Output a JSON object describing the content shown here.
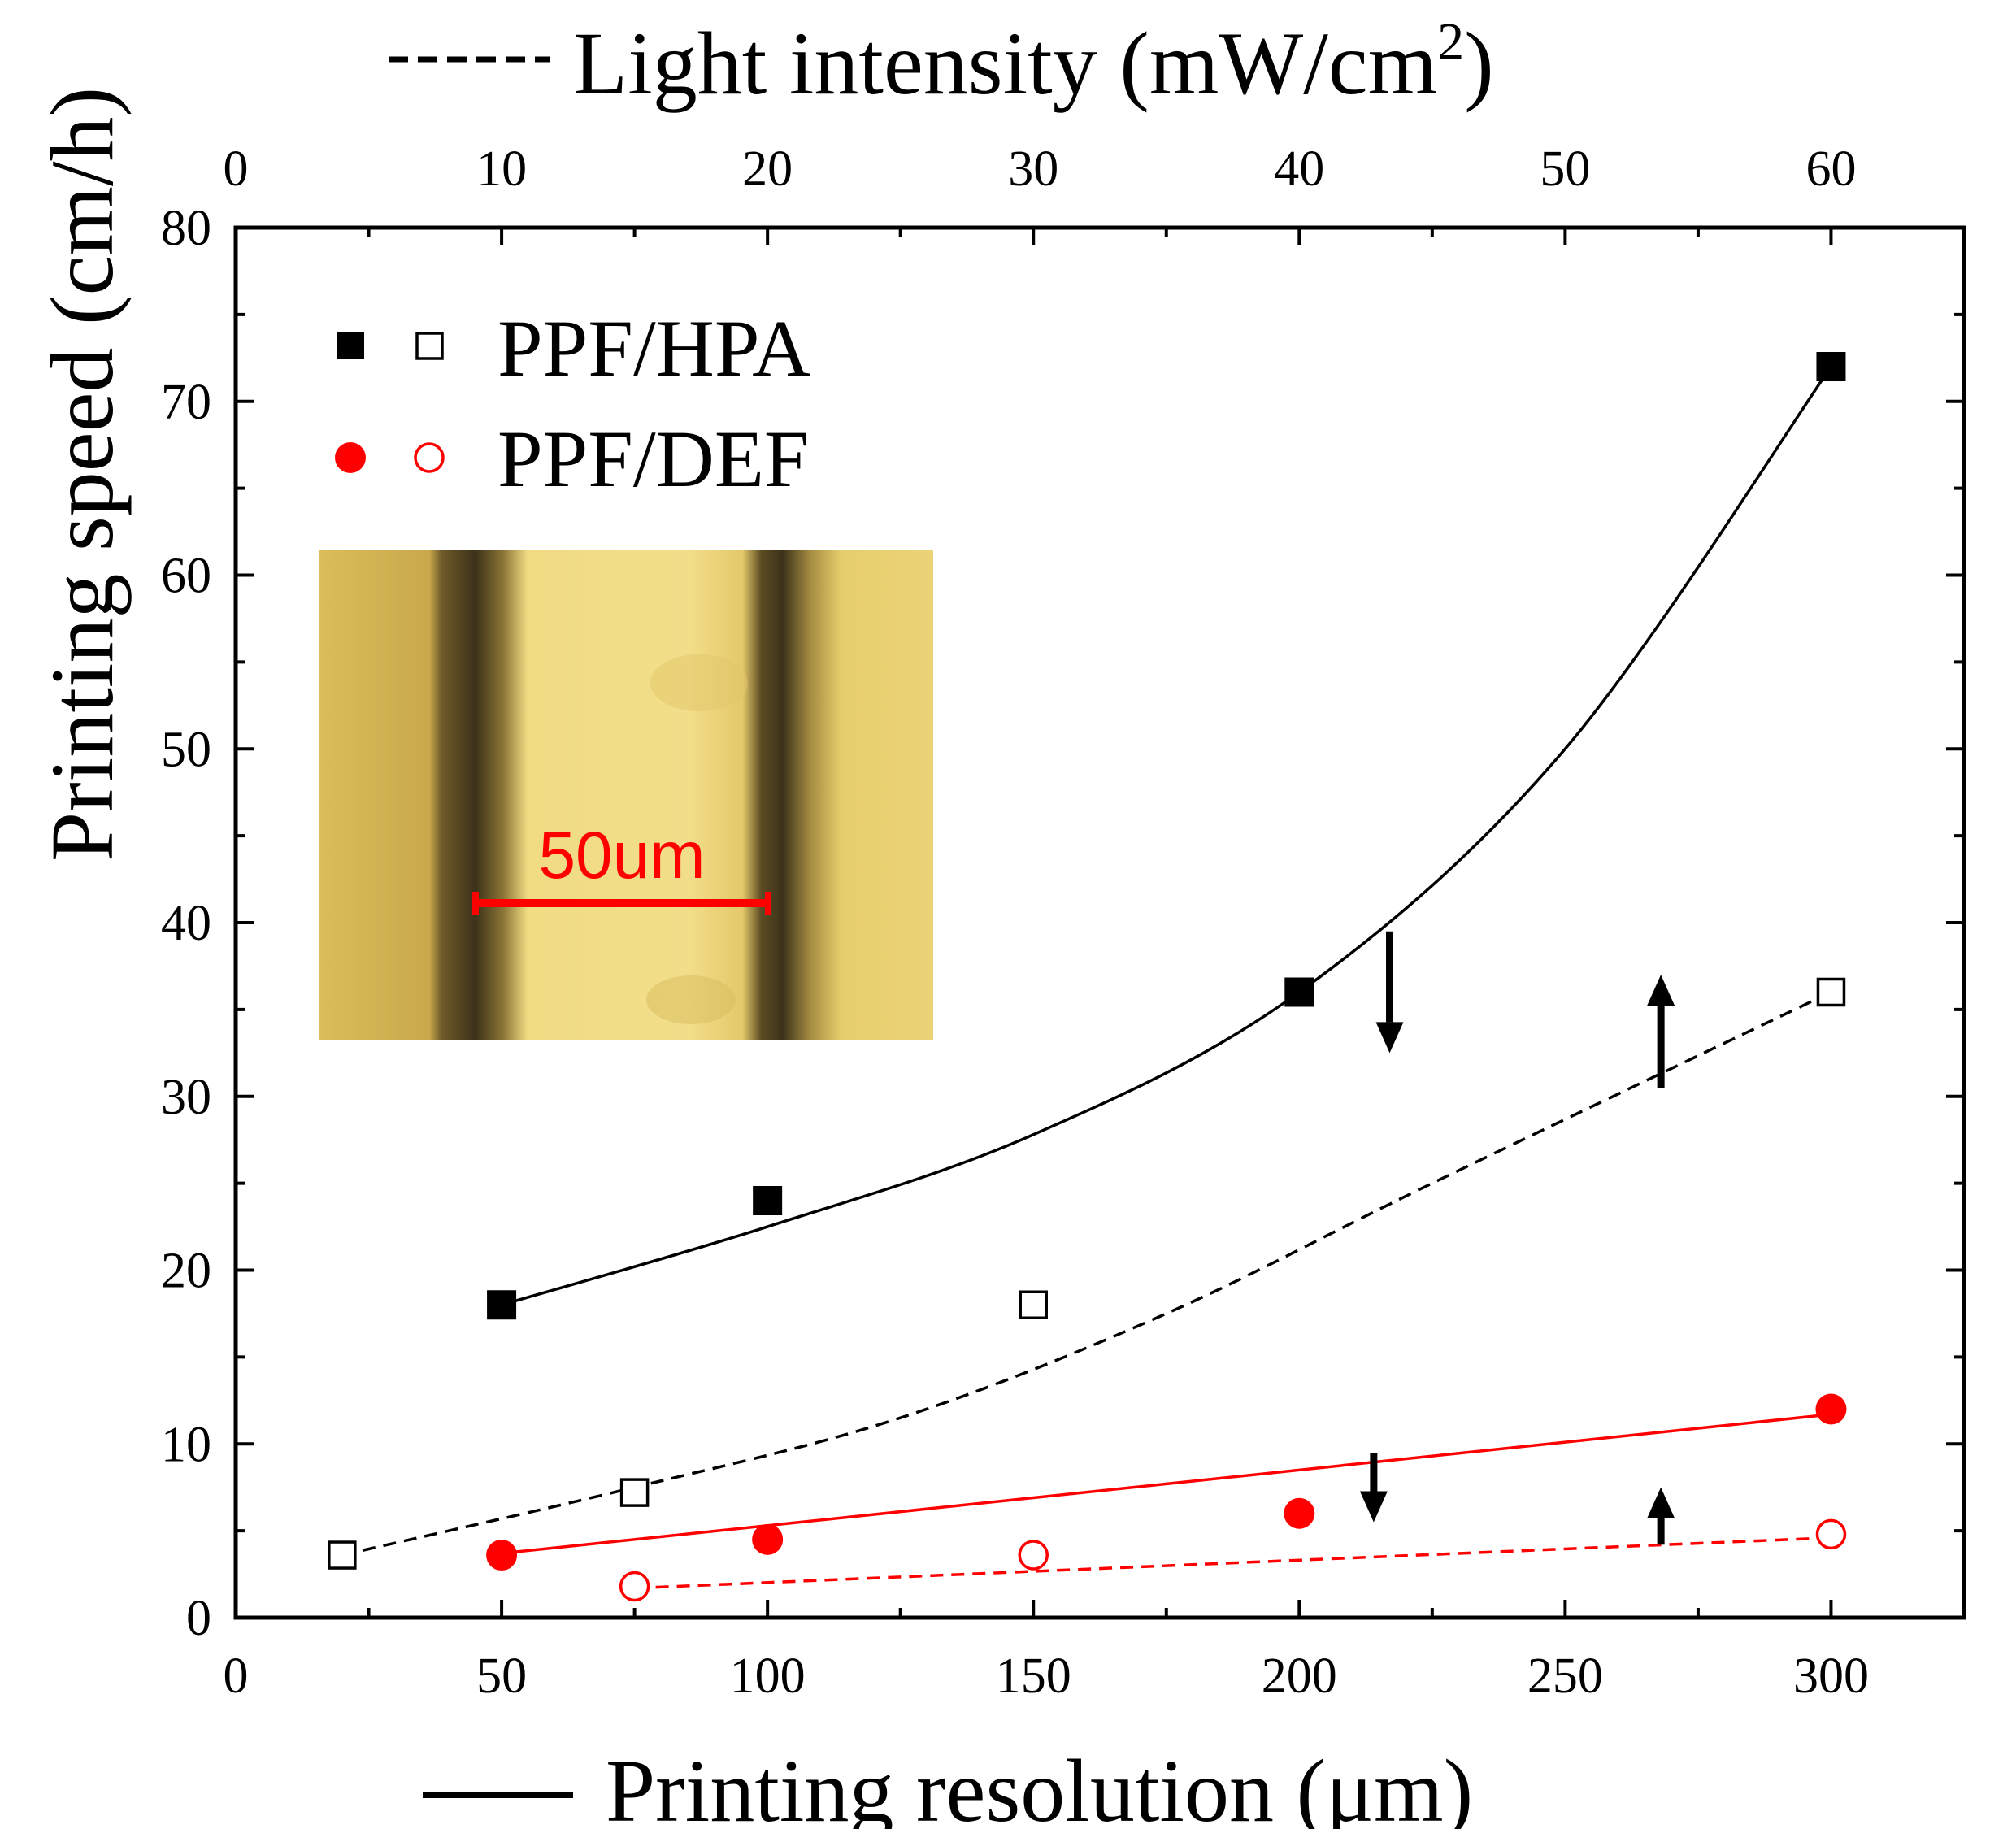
{
  "chart_data": {
    "type": "scatter",
    "x_bottom": {
      "label": "Printing resolution (μm)",
      "range": [
        0,
        325
      ],
      "ticks": [
        0,
        50,
        100,
        150,
        200,
        250,
        300
      ]
    },
    "x_top": {
      "label_main": "Light intensity (mW/cm",
      "label_sup": "2",
      "label_close": ")",
      "range": [
        0,
        65
      ],
      "ticks": [
        0,
        10,
        20,
        30,
        40,
        50,
        60
      ]
    },
    "y": {
      "label": "Printing speed (cm/h)",
      "range": [
        0,
        80
      ],
      "ticks": [
        0,
        10,
        20,
        30,
        40,
        50,
        60,
        70,
        80
      ]
    },
    "legend": {
      "position": "top-left",
      "entries": [
        {
          "label": "PPF/HPA",
          "color": "#000000"
        },
        {
          "label": "PPF/DEF",
          "color": "#ff0000"
        }
      ]
    },
    "series": [
      {
        "name": "PPF/HPA vs resolution",
        "axis": "bottom",
        "marker": "filled-square",
        "color": "#000000",
        "points": [
          [
            50,
            18
          ],
          [
            100,
            24
          ],
          [
            200,
            36
          ],
          [
            300,
            72
          ]
        ],
        "fit": {
          "style": "solid",
          "x_from": 50,
          "x_to": 300,
          "curve": [
            [
              50,
              18
            ],
            [
              100,
              22.5
            ],
            [
              150,
              27.8
            ],
            [
              200,
              36
            ],
            [
              250,
              50
            ],
            [
              300,
              72
            ]
          ]
        }
      },
      {
        "name": "PPF/HPA vs light intensity",
        "axis": "top",
        "marker": "open-square",
        "color": "#000000",
        "points": [
          [
            4,
            3.6
          ],
          [
            15,
            7.2
          ],
          [
            30,
            18
          ],
          [
            60,
            36
          ]
        ],
        "fit": {
          "style": "dashed",
          "x_from": 4,
          "x_to": 60,
          "curve": [
            [
              4,
              3.6
            ],
            [
              15,
              7.5
            ],
            [
              25,
              11.5
            ],
            [
              35,
              17.5
            ],
            [
              45,
              25
            ],
            [
              60,
              36
            ]
          ]
        }
      },
      {
        "name": "PPF/DEF vs resolution",
        "axis": "bottom",
        "marker": "filled-circle",
        "color": "#ff0000",
        "points": [
          [
            50,
            3.6
          ],
          [
            100,
            4.5
          ],
          [
            200,
            6.0
          ],
          [
            300,
            12.0
          ]
        ],
        "fit": {
          "style": "solid",
          "x_from": 50,
          "x_to": 300,
          "curve": [
            [
              50,
              3.7
            ],
            [
              300,
              11.7
            ]
          ]
        }
      },
      {
        "name": "PPF/DEF vs light intensity",
        "axis": "top",
        "marker": "open-circle",
        "color": "#ff0000",
        "points": [
          [
            15,
            1.8
          ],
          [
            30,
            3.6
          ],
          [
            60,
            4.8
          ]
        ],
        "fit": {
          "style": "dashed",
          "x_from": 15,
          "x_to": 60,
          "curve": [
            [
              15,
              1.7
            ],
            [
              60,
              4.6
            ]
          ]
        }
      }
    ],
    "annotations": [
      {
        "type": "arrow",
        "direction": "down",
        "x": 217,
        "y_from": 39.5,
        "y_to": 32.5
      },
      {
        "type": "arrow",
        "direction": "up",
        "x": 268,
        "y_from": 30.5,
        "y_to": 37
      },
      {
        "type": "arrow",
        "direction": "down",
        "x": 214,
        "y_from": 9.5,
        "y_to": 5.5
      },
      {
        "type": "arrow",
        "direction": "up",
        "x": 268,
        "y_from": 4.2,
        "y_to": 7.5
      }
    ],
    "inset": {
      "description": "micrograph",
      "scale_bar_label": "50um",
      "scale_bar_color": "#ff0000",
      "background_color": "#e8cf6b"
    }
  }
}
